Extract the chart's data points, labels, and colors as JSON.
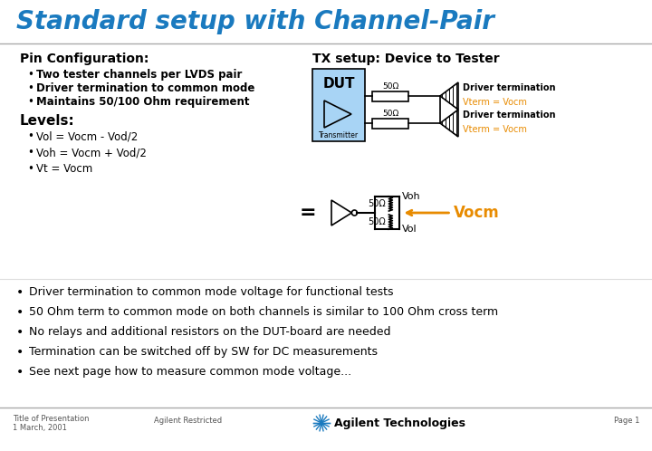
{
  "title": "Standard setup with Channel-Pair",
  "title_color": "#1a7abf",
  "bg_color": "#ffffff",
  "pin_config_header": "Pin Configuration:",
  "pin_config_bullets": [
    "Two tester channels per LVDS pair",
    "Driver termination to common mode",
    "Maintains 50/100 Ohm requirement"
  ],
  "levels_header": "Levels:",
  "levels_bullets": [
    "Vol = Vocm - Vod/2",
    "Voh = Vocm + Vod/2",
    "Vt = Vocm"
  ],
  "tx_setup_label": "TX setup: Device to Tester",
  "dut_label": "DUT",
  "transmitter_label": "Transmitter",
  "ohm_top": "50Ω",
  "ohm_bot": "50Ω",
  "ohm_eq_top": "50Ω",
  "ohm_eq_bot": "50Ω",
  "driver_term_label": "Driver termination",
  "vterm_label": "Vterm = Vocm",
  "vterm_color": "#e88b00",
  "voh_label": "Voh",
  "vol_label": "Vol",
  "vocm_label": "Vocm",
  "vocm_color": "#e88b00",
  "bottom_bullets": [
    "Driver termination to common mode voltage for functional tests",
    "50 Ohm term to common mode on both channels is similar to 100 Ohm cross term",
    "No relays and additional resistors on the DUT-board are needed",
    "Termination can be switched off by SW for DC measurements",
    "See next page how to measure common mode voltage..."
  ],
  "footer_left1": "Title of Presentation",
  "footer_left2": "1 March, 2001",
  "footer_mid": "Agilent Restricted",
  "footer_company": "Agilent Technologies",
  "footer_right": "Page 1",
  "dut_fill": "#a8d4f5",
  "dut_border": "#000000",
  "text_color": "#000000",
  "title_fontsize": 20,
  "header_fontsize": 10,
  "bullet_fontsize": 8.5,
  "diagram_label_fontsize": 8,
  "footer_fontsize": 6
}
